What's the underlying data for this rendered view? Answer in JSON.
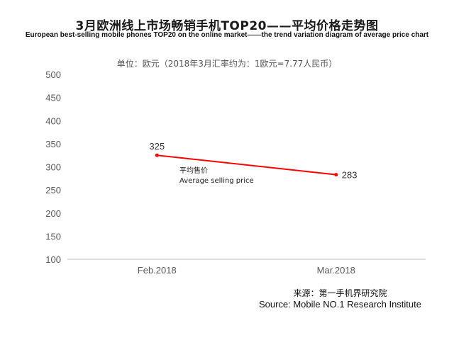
{
  "header": {
    "title": "3月欧洲线上市场畅销手机TOP20——平均价格走势图",
    "subtitle": "European best-selling mobile phones TOP20 on the online market——the trend variation diagram of average price chart",
    "unit_note": "单位：欧元（2018年3月汇率约为：1欧元=7.77人民币）"
  },
  "footer": {
    "source_cn": "来源：第一手机界研究院",
    "source_en": "Source: Mobile NO.1 Research Institute"
  },
  "chart_data": {
    "type": "line",
    "categories": [
      "Feb.2018",
      "Mar.2018"
    ],
    "series": [
      {
        "name": "平均售价",
        "name_en": "Average selling price",
        "values": [
          325,
          283
        ],
        "color": "#ff0000"
      }
    ],
    "data_labels": [
      "325",
      "283"
    ],
    "ylim": [
      100,
      500
    ],
    "yticks": [
      100,
      150,
      200,
      250,
      300,
      350,
      400,
      450,
      500
    ],
    "grid": false,
    "legend": "inline-label"
  }
}
